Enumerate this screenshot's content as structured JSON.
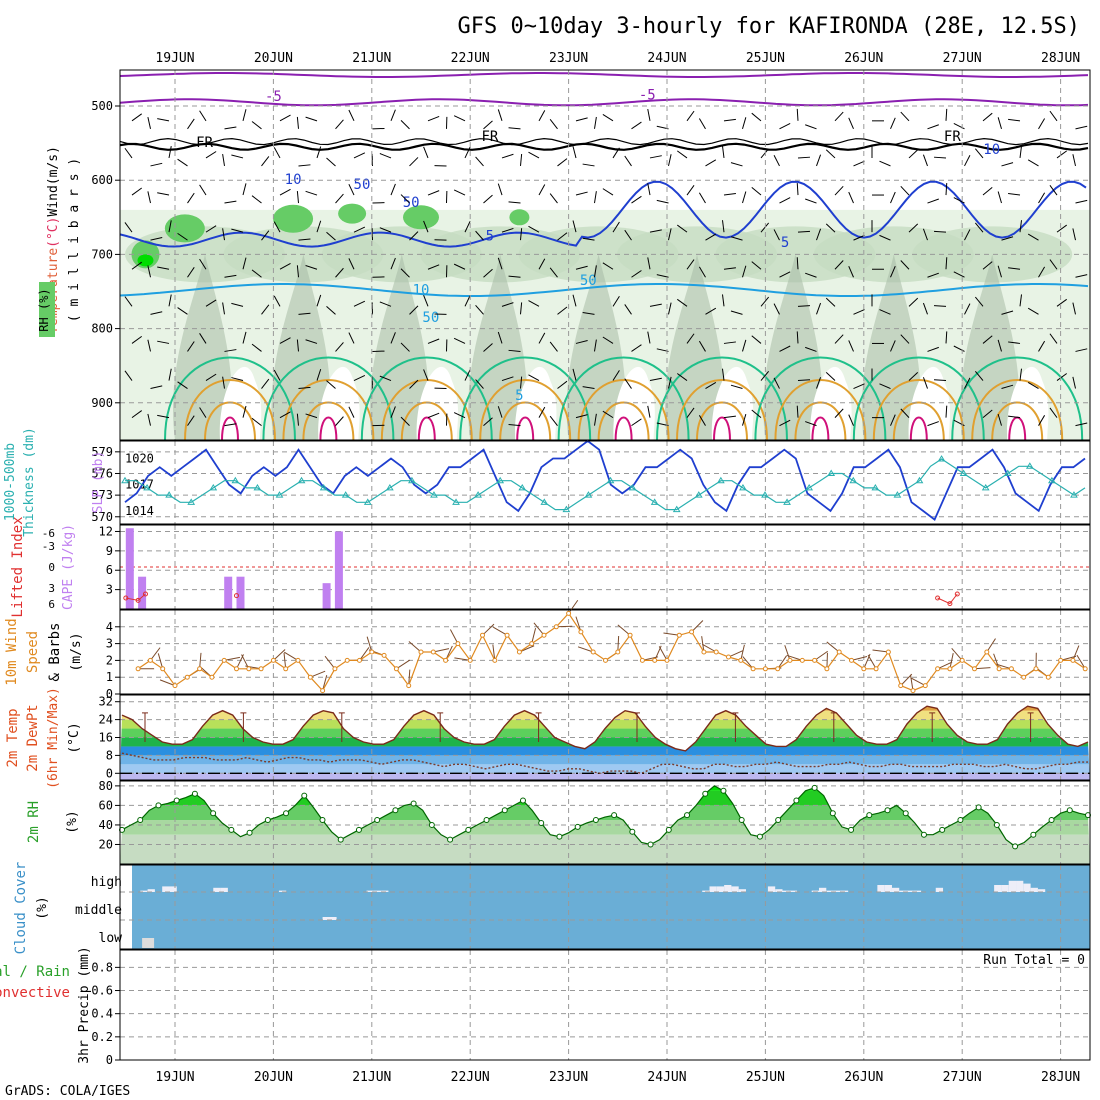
{
  "header": {
    "title": "GFS 0~10day 3-hourly for KAFIRONDA (28E, 12.5S)",
    "footer": "GrADS: COLA/IGES"
  },
  "dates": [
    "19JUN",
    "20JUN",
    "21JUN",
    "22JUN",
    "23JUN",
    "24JUN",
    "25JUN",
    "26JUN",
    "27JUN",
    "28JUN"
  ],
  "colors": {
    "rh_light": "#e8f3e5",
    "rh_mid": "#c6dcc2",
    "rh_dark": "#a7bca6",
    "rh_green": "#66cc66",
    "rh_bright": "#00dd00",
    "temp_blue": "#1f3fcf",
    "temp_cyan": "#1f9fe0",
    "temp_teal": "#1fc08a",
    "temp_orange": "#e0a030",
    "temp_purple": "#8a1fb0",
    "temp_magenta": "#d0107a",
    "slp": "#1f3fcf",
    "thickness": "#2ab0b0",
    "cape": "#c080f0",
    "lifted": "#e03030",
    "wind": "#e08a20",
    "cloud": "#6aaed6"
  },
  "chart_data": [
    {
      "type": "heatmap",
      "name": "upper-air",
      "ylabel_parts": [
        "Temperature",
        "(°C)",
        "Wind",
        "(m/s)"
      ],
      "ylabel_vertical": "( m i l l i b a r s )",
      "rh_label": "RH (%)",
      "yticks": [
        500,
        600,
        700,
        800,
        900
      ],
      "ylim": [
        450,
        950
      ],
      "contour_labels": [
        {
          "text": "-5",
          "x": 1.0,
          "y": 493
        },
        {
          "text": "-5",
          "x": 4.8,
          "y": 491
        },
        {
          "text": "FR",
          "x": 0.3,
          "y": 555
        },
        {
          "text": "FR",
          "x": 3.2,
          "y": 547
        },
        {
          "text": "FR",
          "x": 7.9,
          "y": 547
        },
        {
          "text": "5",
          "x": 3.2,
          "y": 681
        },
        {
          "text": "5",
          "x": 6.2,
          "y": 690
        },
        {
          "text": "10",
          "x": 2.5,
          "y": 754
        },
        {
          "text": "5",
          "x": 3.5,
          "y": 896
        },
        {
          "text": "10",
          "x": 1.2,
          "y": 605
        },
        {
          "text": "50",
          "x": 1.9,
          "y": 612
        },
        {
          "text": "50",
          "x": 2.4,
          "y": 636
        },
        {
          "text": "10",
          "x": 8.3,
          "y": 565
        },
        {
          "text": "50",
          "x": 4.2,
          "y": 741
        },
        {
          "text": "50",
          "x": 2.6,
          "y": 791
        }
      ]
    },
    {
      "type": "line",
      "name": "slp-thickness",
      "ylabel_a": "1000-500mb",
      "ylabel_b": "Thickness (dm)",
      "ylabel_c": "SLP (mb)",
      "left_ticks": [
        570,
        573,
        576,
        579
      ],
      "right_ticks": [
        1014,
        1017,
        1020
      ],
      "left_ylim": [
        569,
        580.5
      ],
      "right_ylim": [
        1012.5,
        1022
      ],
      "series": [
        {
          "name": "SLP",
          "axis": "right",
          "values": [
            1015,
            1016,
            1018,
            1019,
            1018,
            1019,
            1020,
            1021,
            1019,
            1017,
            1016,
            1018,
            1019,
            1018,
            1019,
            1021,
            1019,
            1017,
            1016,
            1018,
            1019,
            1018,
            1019,
            1020,
            1019,
            1017,
            1016,
            1017,
            1019,
            1019,
            1020,
            1021,
            1018,
            1015,
            1014,
            1016,
            1019,
            1020,
            1020,
            1021,
            1022,
            1021,
            1017,
            1016,
            1017,
            1019,
            1019,
            1020,
            1021,
            1020,
            1017,
            1015,
            1014,
            1017,
            1019,
            1019,
            1020,
            1021,
            1020,
            1016,
            1015,
            1014,
            1016,
            1019,
            1019,
            1020,
            1021,
            1019,
            1015,
            1014,
            1013,
            1016,
            1019,
            1019,
            1020,
            1021,
            1019,
            1016,
            1015,
            1014,
            1017,
            1019,
            1019,
            1020
          ]
        },
        {
          "name": "Thickness",
          "axis": "left",
          "values": [
            575,
            575,
            574,
            573,
            573,
            572,
            572,
            573,
            574,
            575,
            575,
            574,
            574,
            573,
            573,
            574,
            575,
            575,
            574,
            573,
            573,
            572,
            572,
            573,
            574,
            575,
            575,
            574,
            573,
            573,
            572,
            572,
            573,
            574,
            575,
            575,
            574,
            573,
            572,
            571,
            571,
            572,
            573,
            574,
            575,
            575,
            574,
            573,
            572,
            571,
            571,
            572,
            573,
            574,
            575,
            575,
            574,
            573,
            573,
            572,
            572,
            573,
            574,
            575,
            576,
            576,
            575,
            574,
            574,
            573,
            573,
            574,
            575,
            577,
            578,
            577,
            576,
            575,
            574,
            575,
            576,
            577,
            577,
            576,
            575,
            574,
            573,
            574
          ]
        }
      ]
    },
    {
      "type": "bar",
      "name": "cape-li",
      "ylabel_a": "Lifted Index",
      "ylabel_b": "CAPE (J/kg)",
      "left_ticks": [
        "-6",
        "-3",
        "0",
        "3",
        "6"
      ],
      "right_ticks": [
        3,
        6,
        9,
        12
      ],
      "cape_ylim": [
        0,
        13
      ],
      "cape_bars": [
        {
          "x": 0.0,
          "value": 12.5
        },
        {
          "x": 0.125,
          "value": 5
        },
        {
          "x": 1.0,
          "value": 5
        },
        {
          "x": 1.125,
          "value": 5
        },
        {
          "x": 2.0,
          "value": 4
        },
        {
          "x": 2.125,
          "value": 12
        }
      ],
      "li_points": [
        {
          "x": 0.0,
          "y": 5.5
        },
        {
          "x": 0.125,
          "y": 5.2
        },
        {
          "x": 0.2,
          "y": 6
        },
        {
          "x": 1.125,
          "y": 5.8
        },
        {
          "x": 8.25,
          "y": 5.5
        },
        {
          "x": 8.375,
          "y": 4.8
        },
        {
          "x": 8.45,
          "y": 6
        }
      ]
    },
    {
      "type": "line",
      "name": "wind",
      "ylabel_a": "10m Wind",
      "ylabel_b": "Speed",
      "ylabel_c": "(m/s)",
      "ylabel_d": "& Barbs",
      "yticks": [
        0,
        1,
        2,
        3,
        4
      ],
      "ylim": [
        0,
        5
      ],
      "x_start": -0.375,
      "values": [
        1.5,
        2,
        1.5,
        0.5,
        1,
        1.5,
        1,
        2,
        1.5,
        1.5,
        1.5,
        2,
        1.5,
        2,
        1,
        0.2,
        1.5,
        2,
        2,
        2.5,
        2.3,
        1.5,
        0.5,
        2.5,
        2.5,
        2,
        3,
        2,
        3.5,
        2,
        3.5,
        2.5,
        3,
        3.5,
        4,
        4.8,
        3.7,
        2.5,
        2,
        2.5,
        3.5,
        2,
        2,
        2,
        3.5,
        3.7,
        2.5,
        2.5,
        2.2,
        2,
        1.5,
        1.5,
        1.5,
        2,
        2,
        2,
        1.5,
        2.5,
        2,
        1.5,
        1.5,
        2.5,
        0.5,
        0.2,
        0.5,
        1.5,
        1.5,
        2,
        1.5,
        2.5,
        1.5,
        1.5,
        1,
        1.5,
        1,
        2,
        2,
        1.5,
        1,
        2.5,
        3.2,
        2.5,
        3.5,
        2,
        2,
        3.3,
        2,
        2,
        2,
        2.3,
        3.3
      ]
    },
    {
      "type": "area",
      "name": "temperature",
      "ylabel_a": "2m Temp",
      "ylabel_b": "2m DewPt",
      "ylabel_c": "(6hr Min/Max)",
      "ylabel_d": "(°C)",
      "yticks": [
        0,
        8,
        16,
        24,
        32
      ],
      "ylim": [
        -3,
        35
      ],
      "temp": [
        26,
        24,
        20,
        17,
        14,
        13,
        13,
        15,
        21,
        26,
        28,
        26,
        20,
        16,
        14,
        13,
        13,
        15,
        21,
        26,
        28,
        27,
        20,
        16,
        14,
        13,
        13,
        15,
        21,
        26,
        28,
        26,
        20,
        16,
        14,
        13,
        13,
        15,
        21,
        26,
        28,
        26,
        21,
        16,
        14,
        12,
        11,
        14,
        20,
        25,
        28,
        27,
        21,
        16,
        13,
        11,
        10,
        14,
        20,
        26,
        28,
        26,
        21,
        17,
        13,
        12,
        12,
        15,
        21,
        26,
        29,
        27,
        22,
        17,
        14,
        13,
        13,
        15,
        22,
        27,
        30,
        29,
        22,
        17,
        14,
        13,
        13,
        15,
        22,
        27,
        30,
        29,
        22,
        17,
        13,
        12,
        14
      ],
      "dewpoint": [
        9,
        8,
        7,
        6,
        6,
        6,
        7,
        7,
        7,
        6,
        6,
        6,
        7,
        6,
        5,
        6,
        7,
        7,
        6,
        6,
        5,
        6,
        6,
        6,
        5,
        4,
        5,
        6,
        6,
        5,
        4,
        3,
        4,
        4,
        3,
        2,
        3,
        4,
        4,
        3,
        2,
        1,
        1,
        2,
        2,
        1,
        0,
        1,
        1,
        1,
        0,
        2,
        4,
        4,
        3,
        2,
        2,
        4,
        4,
        3,
        3,
        4,
        4,
        5,
        4,
        3,
        3,
        3,
        4,
        4,
        5,
        4,
        3,
        3,
        4,
        4,
        3,
        3,
        3,
        3,
        4,
        4,
        4,
        3,
        3,
        4,
        3,
        2,
        2,
        3,
        4,
        4,
        5,
        5
      ]
    },
    {
      "type": "area",
      "name": "rh",
      "ylabel_a": "2m RH",
      "ylabel_b": "(%)",
      "yticks": [
        20,
        40,
        60,
        80
      ],
      "ylim": [
        0,
        85
      ],
      "values": [
        35,
        40,
        45,
        55,
        60,
        62,
        65,
        68,
        72,
        65,
        52,
        42,
        35,
        28,
        32,
        40,
        45,
        48,
        52,
        60,
        70,
        58,
        45,
        33,
        25,
        30,
        35,
        40,
        45,
        50,
        55,
        60,
        62,
        55,
        40,
        30,
        25,
        30,
        35,
        40,
        45,
        50,
        55,
        60,
        65,
        55,
        42,
        30,
        28,
        32,
        38,
        42,
        45,
        48,
        50,
        45,
        33,
        22,
        20,
        25,
        35,
        45,
        50,
        60,
        72,
        80,
        75,
        62,
        45,
        30,
        28,
        35,
        45,
        55,
        65,
        75,
        78,
        70,
        52,
        38,
        35,
        45,
        50,
        52,
        55,
        60,
        52,
        42,
        30,
        30,
        35,
        40,
        45,
        52,
        58,
        52,
        40,
        25,
        18,
        22,
        30,
        38,
        45,
        52,
        55,
        52,
        50
      ]
    },
    {
      "type": "bar",
      "name": "cloud",
      "ylabel_a": "Cloud Cover",
      "ylabel_b": "(%)",
      "levels": [
        "high",
        "middle",
        "low"
      ],
      "high_values": [
        0,
        5,
        10,
        0,
        20,
        20,
        0,
        0,
        0,
        0,
        0,
        15,
        15,
        0,
        0,
        0,
        0,
        0,
        0,
        0,
        5,
        0,
        0,
        0,
        0,
        0,
        0,
        0,
        0,
        0,
        0,
        0,
        5,
        5,
        5,
        0,
        0,
        0,
        0,
        0,
        0,
        0,
        0,
        0,
        0,
        0,
        0,
        0,
        0,
        0,
        0,
        0,
        0,
        0,
        0,
        0,
        0,
        0,
        0,
        0,
        0,
        0,
        0,
        0,
        0,
        0,
        0,
        0,
        0,
        0,
        0,
        0,
        0,
        0,
        0,
        0,
        0,
        0,
        5,
        20,
        20,
        25,
        20,
        10,
        0,
        0,
        0,
        20,
        10,
        5,
        5,
        0,
        0,
        5,
        15,
        5,
        5,
        5,
        0,
        0,
        0,
        0,
        25,
        25,
        15,
        5,
        5,
        5,
        0,
        0,
        15,
        0,
        0,
        0,
        0,
        0,
        0,
        0,
        25,
        25,
        40,
        40,
        30,
        15,
        10,
        0,
        0,
        0,
        0,
        0,
        0
      ],
      "mid_values": [
        {
          "x": 1.5,
          "value": 10
        }
      ],
      "low_values": [
        {
          "x": -0.375,
          "value": 30
        }
      ]
    },
    {
      "type": "bar",
      "name": "precip",
      "ylabel_a": "Total / Rain",
      "ylabel_b": "Convective",
      "ylabel_c": "3hr Precip (mm)",
      "yticks": [
        0,
        0.2,
        0.4,
        0.6,
        0.8
      ],
      "ylim": [
        0,
        0.95
      ],
      "run_total": "Run Total = 0",
      "values": []
    }
  ]
}
